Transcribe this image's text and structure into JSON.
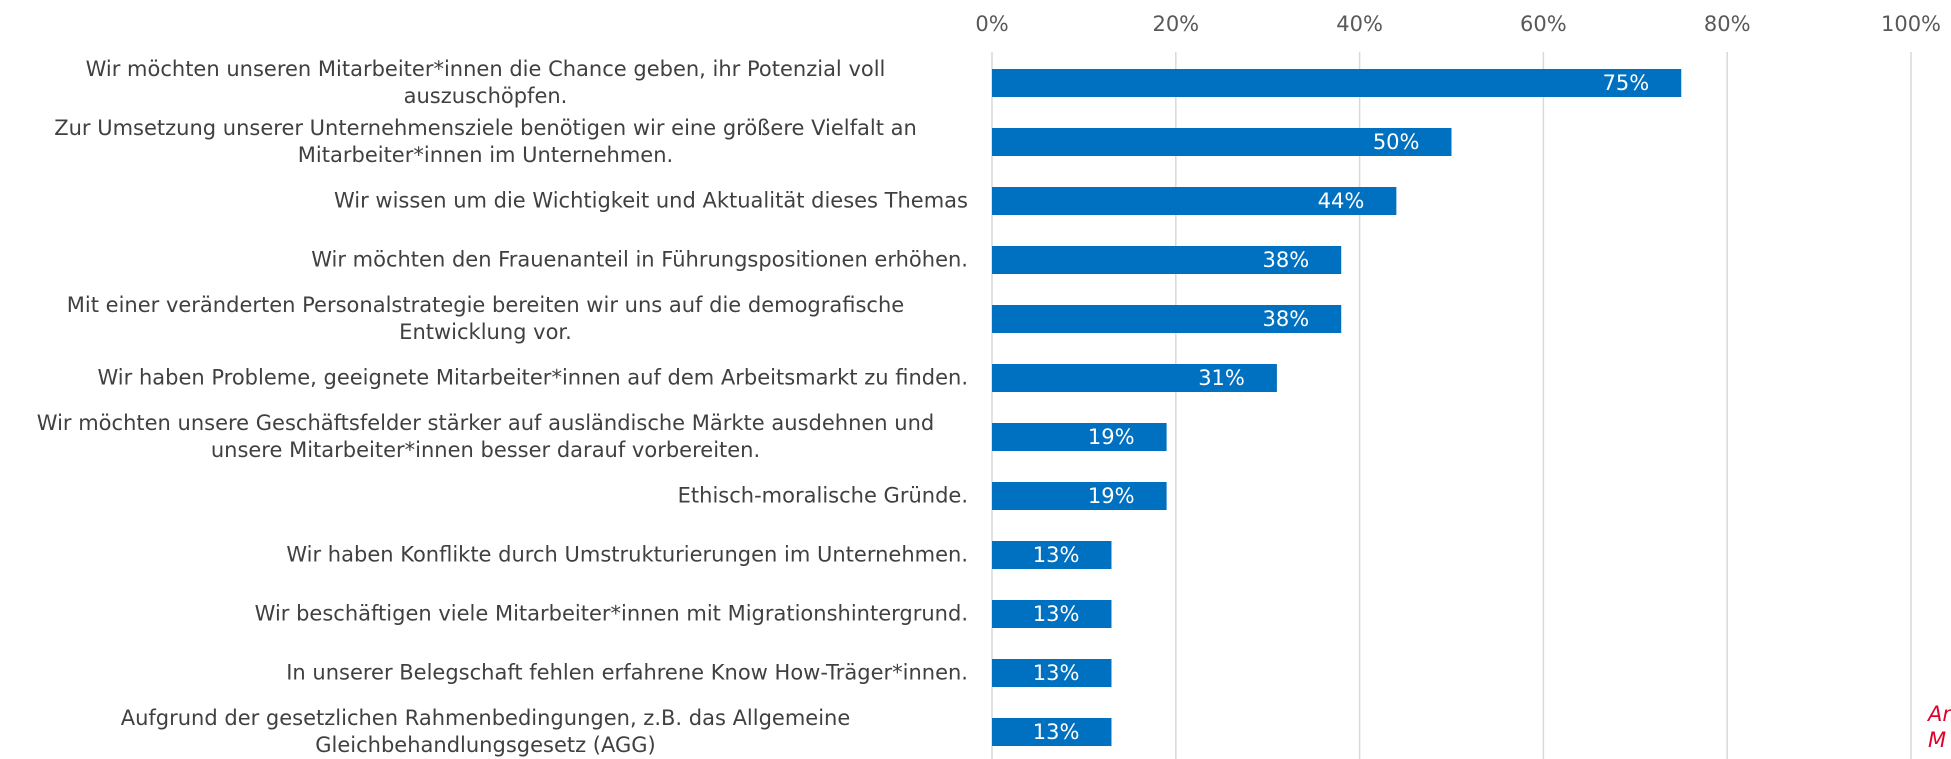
{
  "chart_data": {
    "type": "bar",
    "orientation": "horizontal",
    "categories": [
      "Wir möchten unseren Mitarbeiter*innen die Chance geben, ihr Potenzial voll auszuschöpfen.",
      "Zur Umsetzung unserer Unternehmensziele benötigen wir eine größere Vielfalt an Mitarbeiter*innen im Unternehmen.",
      "Wir wissen um die Wichtigkeit und Aktualität dieses Themas",
      "Wir möchten den Frauenanteil in Führungspositionen erhöhen.",
      "Mit einer veränderten Personalstrategie bereiten wir uns auf die demografische Entwicklung vor.",
      "Wir haben Probleme, geeignete Mitarbeiter*innen auf dem Arbeitsmarkt zu finden.",
      "Wir möchten unsere Geschäftsfelder stärker auf ausländische Märkte ausdehnen und unsere Mitarbeiter*innen besser darauf vorbereiten.",
      "Ethisch-moralische Gründe.",
      "Wir haben Konflikte durch Umstrukturierungen im Unternehmen.",
      "Wir beschäftigen viele Mitarbeiter*innen mit Migrationshintergrund.",
      "In unserer Belegschaft fehlen erfahrene Know How-Träger*innen.",
      "Aufgrund der gesetzlichen Rahmenbedingungen, z.B. das Allgemeine Gleichbehandlungsgesetz (AGG)"
    ],
    "values": [
      75,
      50,
      44,
      38,
      38,
      31,
      19,
      19,
      13,
      13,
      13,
      13
    ],
    "value_labels": [
      "75%",
      "50%",
      "44%",
      "38%",
      "38%",
      "31%",
      "19%",
      "19%",
      "13%",
      "13%",
      "13%",
      "13%"
    ],
    "color": "#0070c0",
    "xlim": [
      0,
      100
    ],
    "xticks": [
      {
        "value": 0,
        "label": "0%"
      },
      {
        "value": 20,
        "label": "20%"
      },
      {
        "value": 40,
        "label": "40%"
      },
      {
        "value": 60,
        "label": "60%"
      },
      {
        "value": 80,
        "label": "80%"
      },
      {
        "value": 100,
        "label": "100%"
      }
    ],
    "grid": true,
    "annotation": [
      "An",
      "M"
    ]
  }
}
